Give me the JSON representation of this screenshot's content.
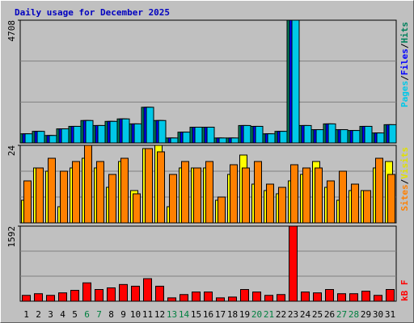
{
  "legend_separator": "/",
  "chart_data": [
    {
      "type": "bar",
      "title": "Daily usage for December 2025",
      "ylim": [
        0,
        4708
      ],
      "yticks": [
        4708
      ],
      "series": [
        {
          "name": "Hits",
          "color": "#00805c",
          "values": [
            350,
            445,
            286,
            540,
            636,
            860,
            668,
            827,
            922,
            731,
            1368,
            860,
            190,
            414,
            604,
            604,
            190,
            190,
            668,
            636,
            350,
            445,
            4708,
            668,
            509,
            731,
            509,
            477,
            636,
            382,
            700
          ]
        },
        {
          "name": "Files",
          "color": "#0000ff",
          "values": [
            350,
            445,
            286,
            540,
            636,
            860,
            668,
            827,
            922,
            731,
            1368,
            860,
            190,
            414,
            604,
            604,
            190,
            190,
            668,
            636,
            350,
            445,
            4708,
            668,
            509,
            731,
            509,
            477,
            636,
            382,
            700
          ]
        },
        {
          "name": "Pages",
          "color": "#00c8e8",
          "values": [
            350,
            445,
            286,
            540,
            636,
            860,
            668,
            827,
            922,
            731,
            1368,
            860,
            190,
            414,
            604,
            604,
            190,
            190,
            668,
            636,
            350,
            445,
            4708,
            668,
            509,
            731,
            509,
            477,
            636,
            382,
            700
          ]
        }
      ]
    },
    {
      "type": "bar",
      "ylim": [
        0,
        24
      ],
      "yticks": [
        24
      ],
      "series": [
        {
          "name": "Visits",
          "color": "#ffff00",
          "values": [
            7,
            17,
            16,
            5,
            17,
            20,
            17,
            11,
            19,
            10,
            23,
            24,
            5,
            17,
            17,
            17,
            7,
            15,
            21,
            12,
            10,
            9,
            13,
            15,
            19,
            11,
            7,
            10,
            10,
            17,
            19
          ]
        },
        {
          "name": "Sites",
          "color": "#ff8000",
          "values": [
            13,
            17,
            20,
            16,
            19,
            24,
            19,
            15,
            20,
            9,
            23,
            22,
            15,
            19,
            17,
            19,
            8,
            18,
            17,
            19,
            12,
            11,
            18,
            17,
            17,
            13,
            16,
            12,
            10,
            20,
            15
          ]
        }
      ]
    },
    {
      "type": "bar",
      "ylim": [
        0,
        1592
      ],
      "yticks": [
        1592
      ],
      "series": [
        {
          "name": "kB F",
          "color": "#ff0000",
          "values": [
            124,
            159,
            124,
            177,
            230,
            389,
            248,
            283,
            354,
            318,
            478,
            318,
            71,
            141,
            195,
            195,
            71,
            88,
            248,
            195,
            124,
            141,
            1592,
            195,
            177,
            248,
            159,
            159,
            212,
            124,
            248
          ]
        }
      ],
      "categories": [
        "1",
        "2",
        "3",
        "4",
        "5",
        "6",
        "7",
        "8",
        "9",
        "10",
        "11",
        "12",
        "13",
        "14",
        "15",
        "16",
        "17",
        "18",
        "19",
        "20",
        "21",
        "22",
        "23",
        "24",
        "25",
        "26",
        "27",
        "28",
        "29",
        "30",
        "31"
      ],
      "label_colors": [
        "#000",
        "#000",
        "#000",
        "#000",
        "#000",
        "#008040",
        "#008040",
        "#000",
        "#000",
        "#000",
        "#000",
        "#000",
        "#008040",
        "#008040",
        "#000",
        "#000",
        "#000",
        "#000",
        "#000",
        "#008040",
        "#008040",
        "#000",
        "#000",
        "#000",
        "#000",
        "#000",
        "#008040",
        "#008040",
        "#000",
        "#000",
        "#000"
      ]
    }
  ]
}
